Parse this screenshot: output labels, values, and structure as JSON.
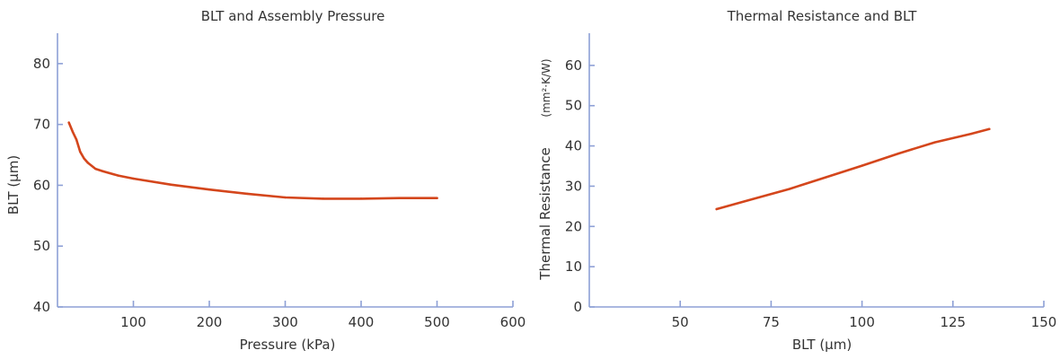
{
  "colors": {
    "series": "#d4461c",
    "axis": "#8ea0d6",
    "text": "#333333"
  },
  "chart_data": [
    {
      "type": "line",
      "title": "BLT and Assembly Pressure",
      "xlabel": "Pressure (kPa)",
      "ylabel": "BLT (μm)",
      "ylabel_unit": "",
      "xlim": [
        0,
        600
      ],
      "ylim": [
        40,
        85
      ],
      "xticks": [
        100,
        200,
        300,
        400,
        500,
        600
      ],
      "yticks": [
        40,
        50,
        60,
        70,
        80
      ],
      "grid": false,
      "series": [
        {
          "x": [
            15,
            20,
            25,
            30,
            35,
            40,
            50,
            60,
            80,
            100,
            150,
            200,
            250,
            300,
            350,
            400,
            450,
            500
          ],
          "y": [
            70.3,
            68.8,
            67.5,
            65.5,
            64.4,
            63.7,
            62.7,
            62.3,
            61.6,
            61.1,
            60.1,
            59.3,
            58.6,
            58.0,
            57.8,
            57.8,
            57.9,
            57.9
          ]
        }
      ]
    },
    {
      "type": "line",
      "title": "Thermal Resistance and BLT",
      "xlabel": "BLT (μm)",
      "ylabel": "Thermal Resistance",
      "ylabel_unit": "(mm²·K/W)",
      "xlim": [
        25,
        150
      ],
      "ylim": [
        0,
        68
      ],
      "xticks": [
        50,
        75,
        100,
        125,
        150
      ],
      "yticks": [
        0,
        10,
        20,
        30,
        40,
        50,
        60
      ],
      "grid": false,
      "series": [
        {
          "x": [
            60,
            70,
            80,
            90,
            100,
            110,
            120,
            130,
            135
          ],
          "y": [
            24.3,
            26.8,
            29.3,
            32.2,
            35.1,
            38.1,
            40.9,
            43.0,
            44.2
          ]
        }
      ]
    }
  ]
}
